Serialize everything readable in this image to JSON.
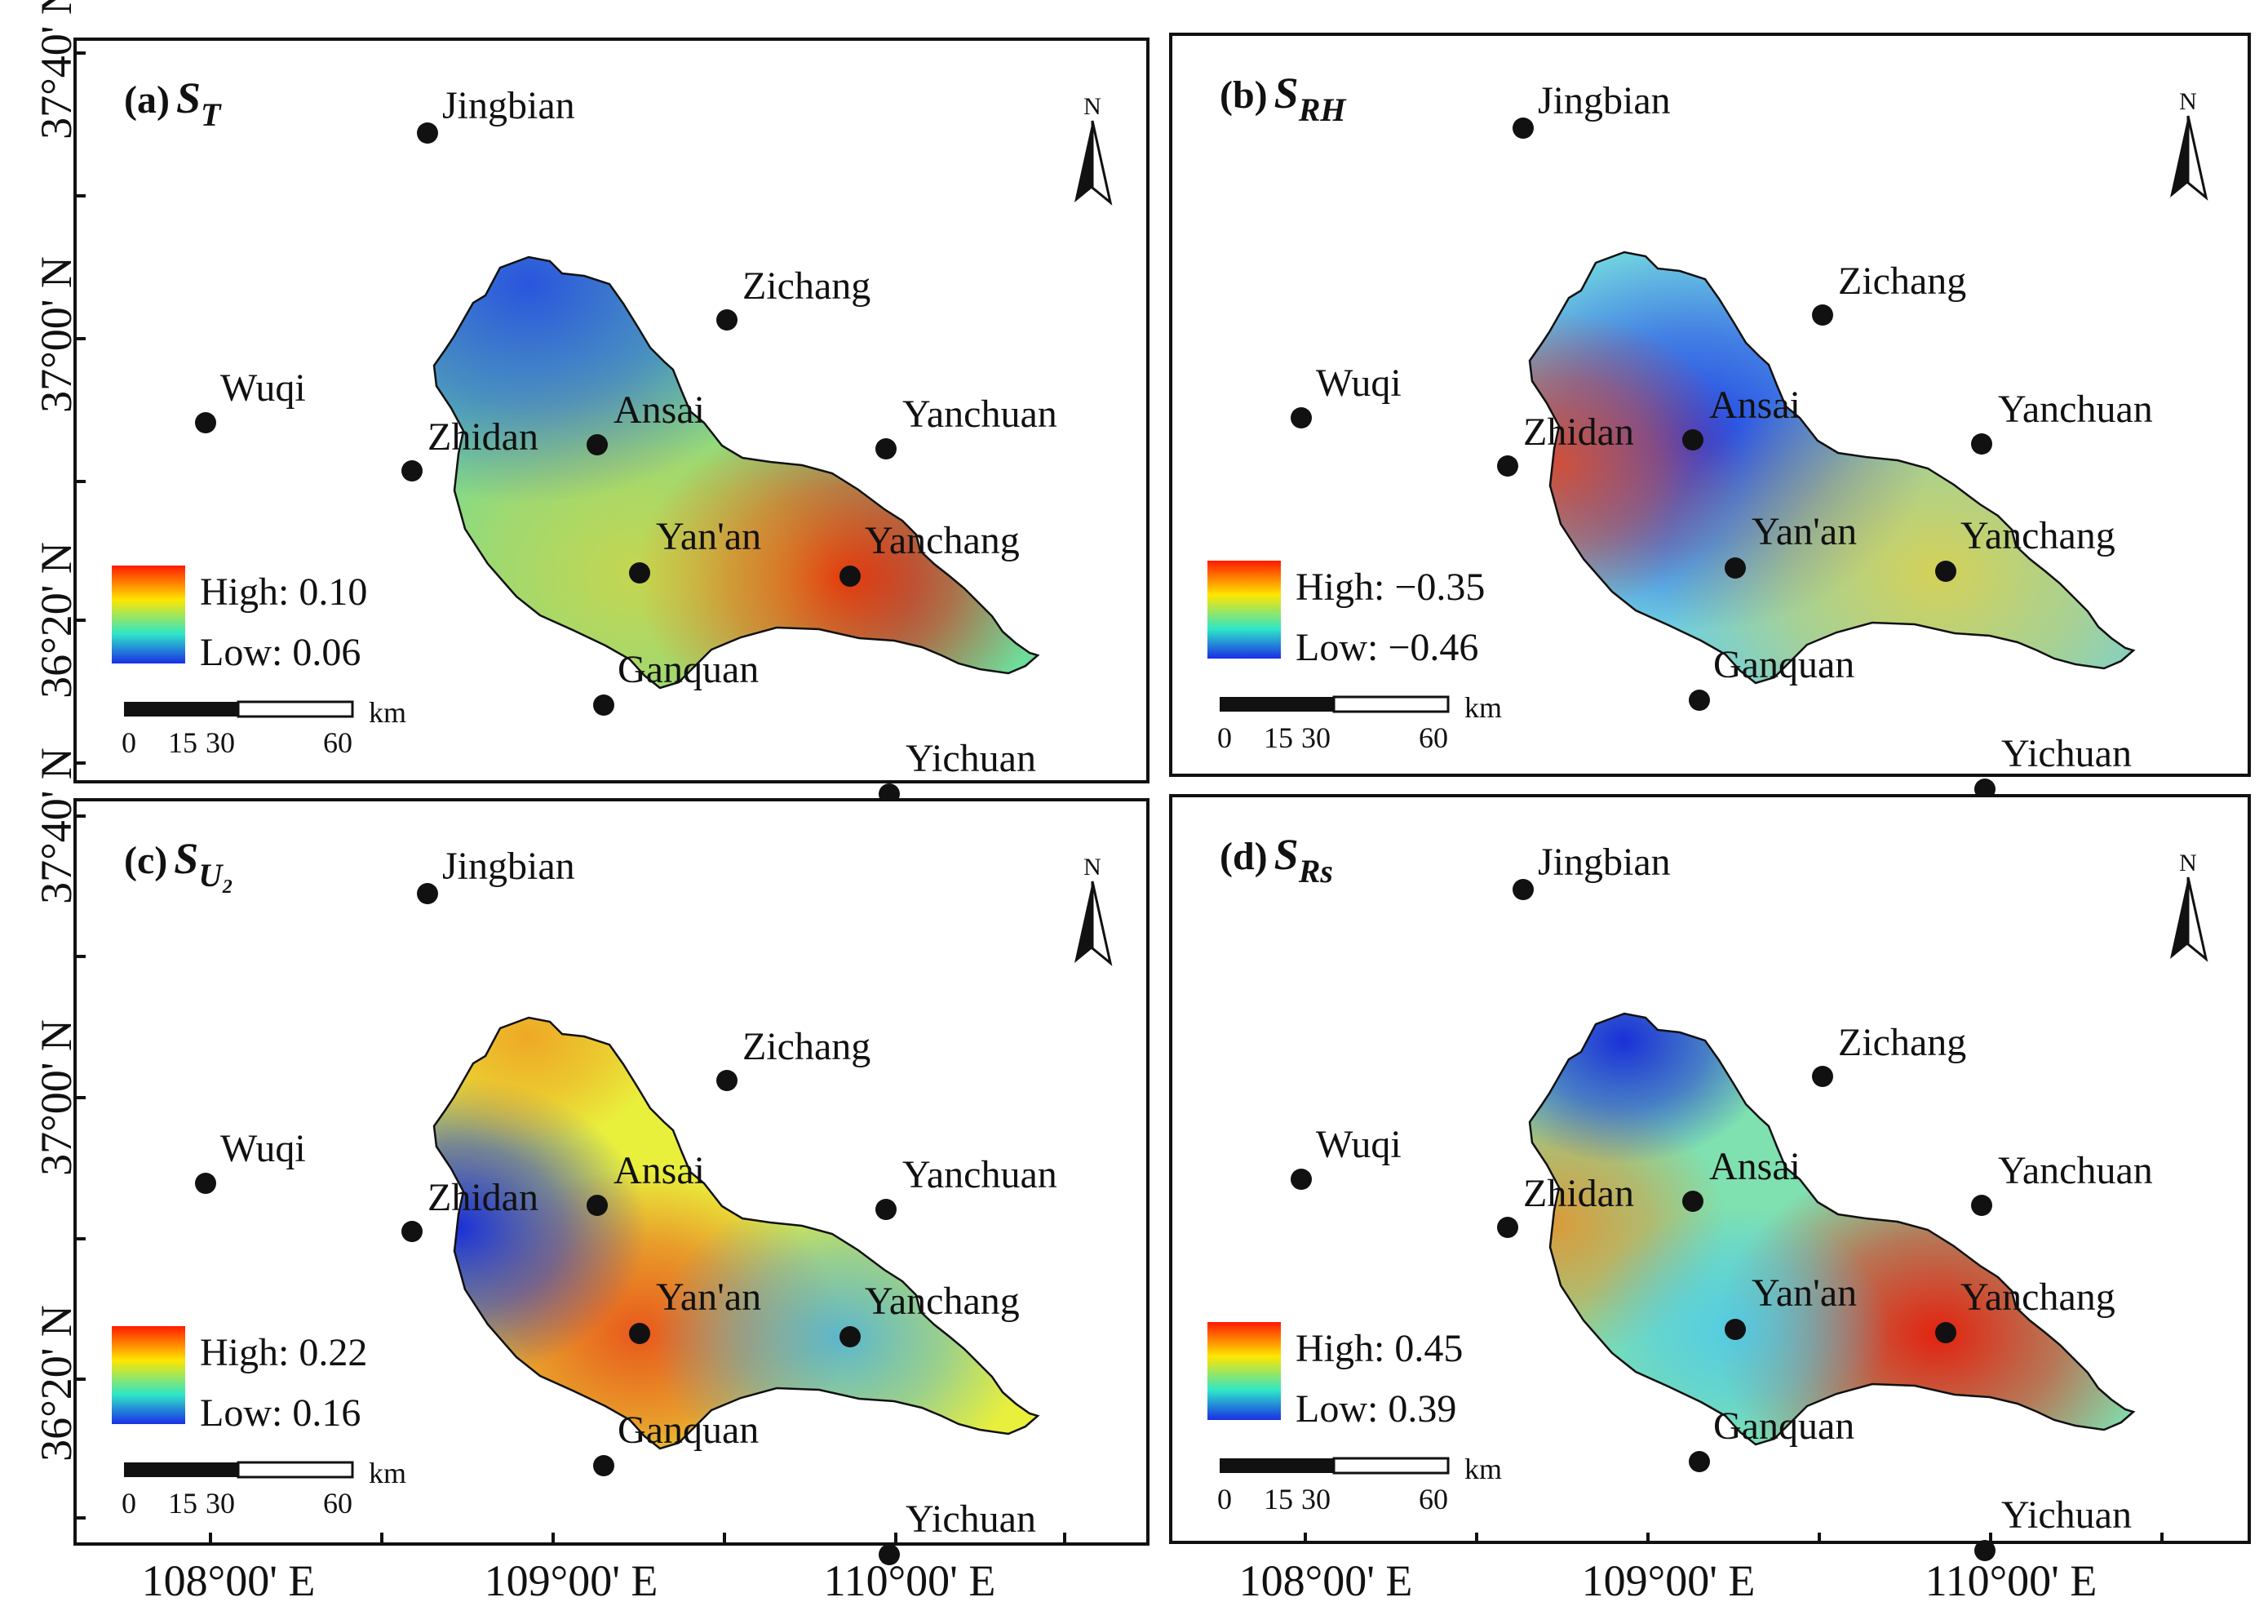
{
  "panels": [
    {
      "id": "a",
      "tag": "(a)",
      "symbol": "S",
      "subscript": "T",
      "legend": {
        "high_label": "High:",
        "high_value": "0.10",
        "low_label": "Low:",
        "low_value": "0.06"
      },
      "hotspots": [
        {
          "at": "Yanchang",
          "color": "#dd1a0a",
          "strength": 1.0,
          "radius": 0.6
        },
        {
          "at": "Yan'an",
          "color": "#ffd21e",
          "strength": 0.6,
          "radius": 0.8
        },
        {
          "at": "NW",
          "color": "#2246e6",
          "strength": 0.9,
          "radius": 0.8
        }
      ],
      "base_color": "#6fdc9a"
    },
    {
      "id": "b",
      "tag": "(b)",
      "symbol": "S",
      "subscript": "RH",
      "legend": {
        "high_label": "High:",
        "high_value": "−0.35",
        "low_label": "Low:",
        "low_value": "−0.46"
      },
      "hotspots": [
        {
          "at": "Ansai",
          "color": "#1f3ee6",
          "strength": 1.0,
          "radius": 0.7
        },
        {
          "at": "Zhidan",
          "color": "#e8461a",
          "strength": 0.85,
          "radius": 0.55
        },
        {
          "at": "Yanchang",
          "color": "#ffd21e",
          "strength": 0.7,
          "radius": 0.8
        }
      ],
      "base_color": "#6fd0e0"
    },
    {
      "id": "c",
      "tag": "(c)",
      "symbol": "S",
      "subscript": "U₂",
      "legend": {
        "high_label": "High:",
        "high_value": "0.22",
        "low_label": "Low:",
        "low_value": "0.16"
      },
      "hotspots": [
        {
          "at": "Yan'an",
          "color": "#e8501a",
          "strength": 0.95,
          "radius": 0.6
        },
        {
          "at": "Zhidan",
          "color": "#1a30d8",
          "strength": 1.0,
          "radius": 0.55
        },
        {
          "at": "Yanchang",
          "color": "#39a8f0",
          "strength": 0.8,
          "radius": 0.55
        },
        {
          "at": "N",
          "color": "#f08a1c",
          "strength": 0.7,
          "radius": 0.4
        }
      ],
      "base_color": "#e9f03c"
    },
    {
      "id": "d",
      "tag": "(d)",
      "symbol": "S",
      "subscript": "Rs",
      "legend": {
        "high_label": "High:",
        "high_value": "0.45",
        "low_label": "Low:",
        "low_value": "0.39"
      },
      "hotspots": [
        {
          "at": "Yanchang",
          "color": "#e3230f",
          "strength": 1.0,
          "radius": 0.65
        },
        {
          "at": "Zhidan",
          "color": "#f08a1c",
          "strength": 0.8,
          "radius": 0.5
        },
        {
          "at": "NW",
          "color": "#1a30d8",
          "strength": 1.0,
          "radius": 0.45
        },
        {
          "at": "Yan'an",
          "color": "#48c8f0",
          "strength": 0.8,
          "radius": 0.45
        }
      ],
      "base_color": "#7fe0b0"
    }
  ],
  "stations": [
    "Jingbian",
    "Zichang",
    "Wuqi",
    "Ansai",
    "Zhidan",
    "Yanchuan",
    "Yan'an",
    "Yanchang",
    "Ganquan",
    "Yichuan"
  ],
  "north_arrow_label": "N",
  "scale_bar": {
    "ticks": [
      "0",
      "15",
      "30",
      "60"
    ],
    "unit": "km"
  },
  "y_axis_labels": [
    "37°40' N",
    "37°00' N",
    "36°20' N"
  ],
  "x_axis_labels": [
    "108°00' E",
    "109°00' E",
    "110°00' E"
  ],
  "colors": {
    "ramp_high": "#ff1a00",
    "ramp_mid1": "#ffe600",
    "ramp_mid2": "#2ee6c8",
    "ramp_low": "#1a2ee6"
  }
}
